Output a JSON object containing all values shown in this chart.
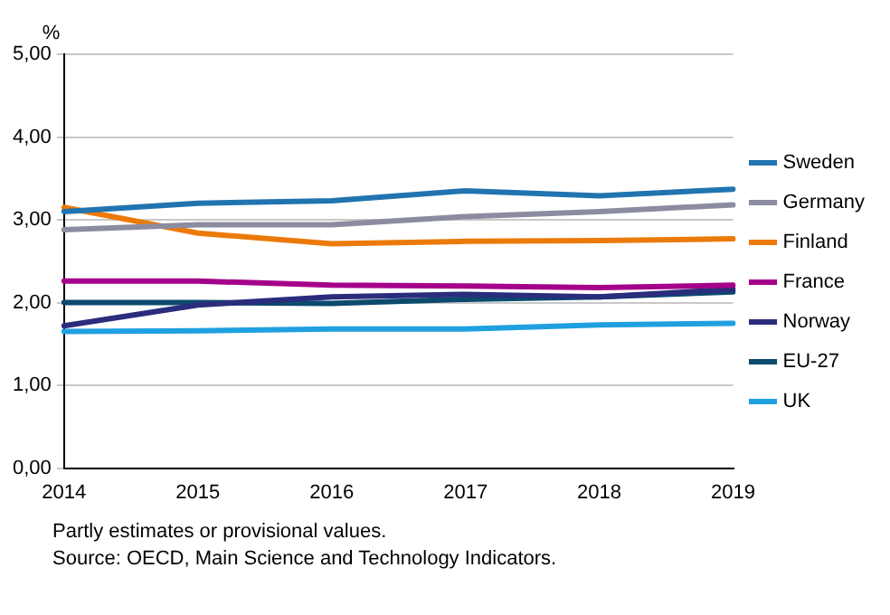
{
  "chart_data": {
    "type": "line",
    "ylabel": "%",
    "categories": [
      "2014",
      "2015",
      "2016",
      "2017",
      "2018",
      "2019"
    ],
    "series": [
      {
        "name": "Sweden",
        "color": "#2174b0",
        "values": [
          3.1,
          3.2,
          3.23,
          3.35,
          3.29,
          3.37
        ]
      },
      {
        "name": "Germany",
        "color": "#8c8ca0",
        "values": [
          2.88,
          2.94,
          2.94,
          3.04,
          3.1,
          3.18
        ]
      },
      {
        "name": "Finland",
        "color": "#ec7a08",
        "values": [
          3.15,
          2.84,
          2.71,
          2.74,
          2.75,
          2.77
        ]
      },
      {
        "name": "France",
        "color": "#a5008a",
        "values": [
          2.26,
          2.26,
          2.21,
          2.2,
          2.18,
          2.21
        ]
      },
      {
        "name": "Norway",
        "color": "#2a2d7c",
        "values": [
          1.72,
          1.97,
          2.07,
          2.1,
          2.07,
          2.16
        ]
      },
      {
        "name": "EU-27",
        "color": "#0c4a6e",
        "values": [
          2.0,
          2.0,
          1.99,
          2.04,
          2.07,
          2.13
        ]
      },
      {
        "name": "UK",
        "color": "#1fa0e0",
        "values": [
          1.65,
          1.66,
          1.68,
          1.68,
          1.73,
          1.75
        ]
      }
    ],
    "ylim": [
      0,
      5
    ],
    "yticks": [
      {
        "value": 0,
        "label": "0,00"
      },
      {
        "value": 1,
        "label": "1,00"
      },
      {
        "value": 2,
        "label": "2,00"
      },
      {
        "value": 3,
        "label": "3,00"
      },
      {
        "value": 4,
        "label": "4,00"
      },
      {
        "value": 5,
        "label": "5,00"
      }
    ],
    "grid": "y",
    "legend": "right",
    "marker": "none",
    "line_style": "solid",
    "annotations": [
      "Partly estimates or provisional values.",
      "Source: OECD, Main Science and Technology Indicators."
    ]
  }
}
